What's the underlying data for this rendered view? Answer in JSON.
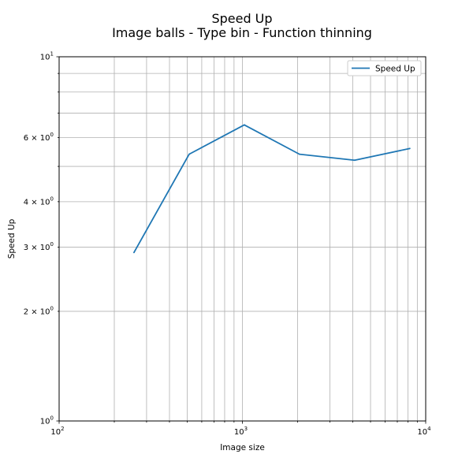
{
  "chart_data": {
    "type": "line",
    "title": "Speed Up",
    "subtitle": "Image balls - Type bin - Function thinning",
    "xlabel": "Image size",
    "ylabel": "Speed Up",
    "xscale": "log",
    "yscale": "log",
    "xlim": [
      100,
      10000
    ],
    "ylim": [
      1,
      10
    ],
    "grid": "both (major and minor)",
    "legend_position": "top-right",
    "x_ticks": [
      {
        "base": "10",
        "exp": "2"
      },
      {
        "base": "10",
        "exp": "3"
      },
      {
        "base": "10",
        "exp": "4"
      }
    ],
    "y_ticks": [
      {
        "value": 1,
        "base": "10",
        "exp": "0"
      },
      {
        "value": 2,
        "base": "2 × 10",
        "exp": "0"
      },
      {
        "value": 3,
        "base": "3 × 10",
        "exp": "0"
      },
      {
        "value": 4,
        "base": "4 × 10",
        "exp": "0"
      },
      {
        "value": 6,
        "base": "6 × 10",
        "exp": "0"
      },
      {
        "value": 10,
        "base": "10",
        "exp": "1"
      }
    ],
    "series": [
      {
        "name": "Speed Up",
        "color": "#1f77b4",
        "x": [
          256,
          512,
          1024,
          2048,
          4096,
          8192
        ],
        "values": [
          2.9,
          5.4,
          6.5,
          5.4,
          5.2,
          5.6
        ]
      }
    ]
  }
}
